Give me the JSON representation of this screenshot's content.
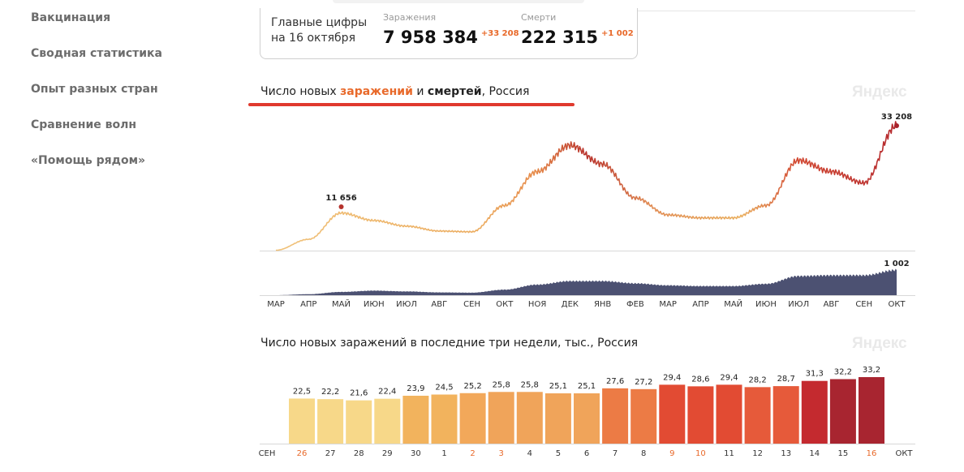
{
  "sidebar": {
    "items": [
      {
        "label": "Вакцинация"
      },
      {
        "label": "Сводная статистика"
      },
      {
        "label": "Опыт разных стран"
      },
      {
        "label": "Сравнение волн"
      },
      {
        "label": "«Помощь рядом»"
      }
    ]
  },
  "summary": {
    "title_line1": "Главные цифры",
    "title_line2": "на 16 октября",
    "cases_label": "Заражения",
    "cases_value": "7 958 384",
    "cases_delta": "+33 208",
    "deaths_label": "Смерти",
    "deaths_value": "222 315",
    "deaths_delta": "+1 002"
  },
  "watermark": "Яндекс",
  "chart1": {
    "title_pre": "Число новых ",
    "title_inf": "заражений",
    "title_mid": " и ",
    "title_dth": "смертей",
    "title_post": ", Россия",
    "peak_label": "11 656",
    "last_label": "33 208",
    "deaths_last_label": "1 002"
  },
  "colors": {
    "accent": "#e8692a",
    "underline": "#e03a2e",
    "deaths_area": "#3d4266"
  },
  "chart_data": [
    {
      "type": "line",
      "series": [
        {
          "name": "заражения",
          "x": [
            "2020-03",
            "2020-04",
            "2020-05",
            "2020-06",
            "2020-07",
            "2020-08",
            "2020-09",
            "2020-10",
            "2020-11",
            "2020-12",
            "2021-01",
            "2021-02",
            "2021-03",
            "2021-04",
            "2021-05",
            "2021-06",
            "2021-07",
            "2021-08",
            "2021-09",
            "2021-10"
          ],
          "values": [
            100,
            3000,
            10000,
            8000,
            6500,
            5200,
            5000,
            12000,
            21000,
            28000,
            23000,
            14000,
            9500,
            8700,
            8700,
            12000,
            24000,
            21000,
            18000,
            33208
          ]
        },
        {
          "name": "смерти",
          "x": [
            "2020-03",
            "2020-04",
            "2020-05",
            "2020-06",
            "2020-07",
            "2020-08",
            "2020-09",
            "2020-10",
            "2020-11",
            "2020-12",
            "2021-01",
            "2021-02",
            "2021-03",
            "2021-04",
            "2021-05",
            "2021-06",
            "2021-07",
            "2021-08",
            "2021-09",
            "2021-10"
          ],
          "values": [
            0,
            40,
            130,
            180,
            150,
            110,
            100,
            220,
            420,
            560,
            560,
            470,
            390,
            360,
            360,
            450,
            760,
            790,
            790,
            1002
          ]
        }
      ],
      "x_ticks": [
        "МАР",
        "АПР",
        "МАЙ",
        "ИЮН",
        "ИЮЛ",
        "АВГ",
        "СЕН",
        "ОКТ",
        "НОЯ",
        "ДЕК",
        "ЯНВ",
        "ФЕВ",
        "МАР",
        "АПР",
        "МАЙ",
        "ИЮН",
        "ИЮЛ",
        "АВГ",
        "СЕН",
        "ОКТ"
      ],
      "annotations": [
        {
          "text": "11 656"
        },
        {
          "text": "33 208"
        },
        {
          "text": "1 002"
        }
      ]
    },
    {
      "type": "bar",
      "title": "Число новых заражений в последние три недели, тыс., Россия",
      "categories": [
        "26",
        "27",
        "28",
        "29",
        "30",
        "1",
        "2",
        "3",
        "4",
        "5",
        "6",
        "7",
        "8",
        "9",
        "10",
        "11",
        "12",
        "13",
        "14",
        "15",
        "16"
      ],
      "values": [
        22.5,
        22.2,
        21.6,
        22.4,
        23.9,
        24.5,
        25.2,
        25.8,
        25.8,
        25.1,
        25.1,
        27.6,
        27.2,
        29.4,
        28.6,
        29.4,
        28.2,
        28.7,
        31.3,
        32.2,
        33.2
      ],
      "value_labels": [
        "22,5",
        "22,2",
        "21,6",
        "22,4",
        "23,9",
        "24,5",
        "25,2",
        "25,8",
        "25,8",
        "25,1",
        "25,1",
        "27,6",
        "27,2",
        "29,4",
        "28,6",
        "29,4",
        "28,2",
        "28,7",
        "31,3",
        "32,2",
        "33,2"
      ],
      "bar_colors": [
        "#f7d889",
        "#f7d889",
        "#f7d889",
        "#f7d889",
        "#f2b35d",
        "#f2b35d",
        "#f2a85a",
        "#f0a45a",
        "#f0a45a",
        "#f0a45a",
        "#f0a45a",
        "#ec7b45",
        "#ec7b45",
        "#e24b33",
        "#e24b33",
        "#e24b33",
        "#e65a3a",
        "#e65a3a",
        "#c42a2f",
        "#a82530",
        "#a82530"
      ],
      "weekend_days": [
        "26",
        "2",
        "3",
        "9",
        "10",
        "16"
      ],
      "month_start": "СЕН",
      "month_end": "ОКТ"
    }
  ]
}
